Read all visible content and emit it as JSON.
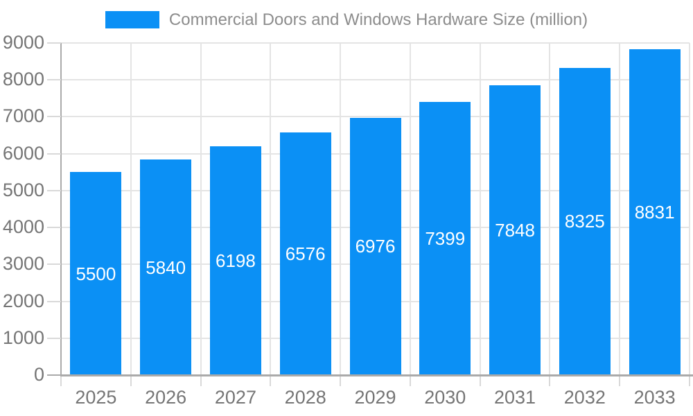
{
  "chart_data": {
    "type": "bar",
    "title": "Commercial Doors and Windows Hardware Size (million)",
    "categories": [
      "2025",
      "2026",
      "2027",
      "2028",
      "2029",
      "2030",
      "2031",
      "2032",
      "2033"
    ],
    "values": [
      5500,
      5840,
      6198,
      6576,
      6976,
      7399,
      7848,
      8325,
      8831
    ],
    "xlabel": "",
    "ylabel": "",
    "ylim": [
      0,
      9000
    ],
    "ytick_step": 1000,
    "ytick_labels": [
      "0",
      "1000",
      "2000",
      "3000",
      "4000",
      "5000",
      "6000",
      "7000",
      "8000",
      "9000"
    ],
    "grid": "on",
    "legend_position": "top-center",
    "value_labels_position": "inside-center",
    "colors": {
      "bar": "#0b90f5",
      "value_label": "#ffffff",
      "title_text": "#8c8c8c",
      "axis_label_text": "#757575",
      "grid_line": "#e4e4e4",
      "tick_line": "#d9d9d9",
      "axis_line": "#aaaaaa",
      "background": "#ffffff"
    }
  }
}
